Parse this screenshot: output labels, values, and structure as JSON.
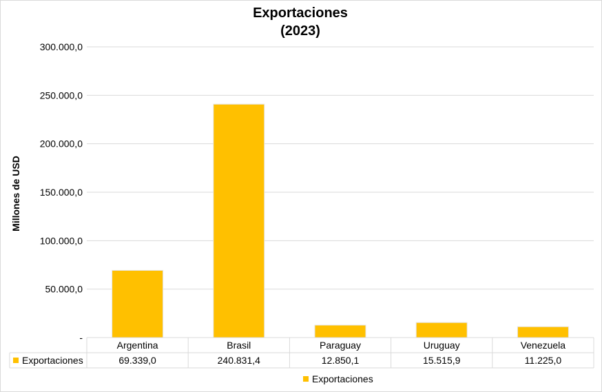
{
  "chart_data": {
    "type": "bar",
    "title": "Exportaciones",
    "subtitle": "(2023)",
    "ylabel": "Millones de USD",
    "xlabel": "",
    "categories": [
      "Argentina",
      "Brasil",
      "Paraguay",
      "Uruguay",
      "Venezuela"
    ],
    "series": [
      {
        "name": "Exportaciones",
        "values": [
          69339.0,
          240831.4,
          12850.1,
          15515.9,
          11225.0
        ],
        "labels": [
          "69.339,0",
          "240.831,4",
          "12.850,1",
          "15.515,9",
          "11.225,0"
        ],
        "color": "#FFC000"
      }
    ],
    "ylim": [
      0,
      300000
    ],
    "yticks": [
      "-",
      "50.000,0",
      "100.000,0",
      "150.000,0",
      "200.000,0",
      "250.000,0",
      "300.000,0"
    ],
    "grid": true,
    "data_table": true,
    "legend_position": "bottom"
  }
}
